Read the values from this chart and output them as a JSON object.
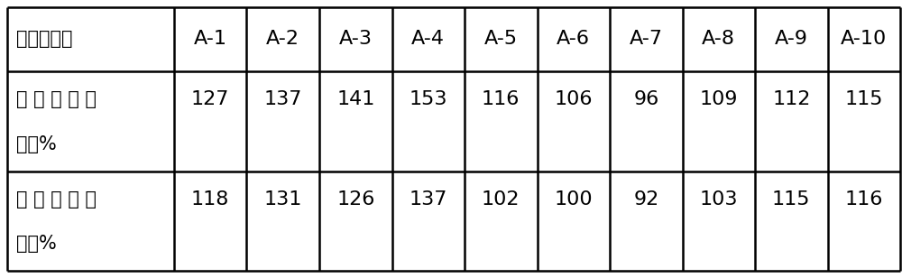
{
  "col_header": [
    "催化剂编号",
    "A-1",
    "A-2",
    "A-3",
    "A-4",
    "A-5",
    "A-6",
    "A-7",
    "A-8",
    "A-9",
    "A-10"
  ],
  "row1_label_line1": "相 对 脱 氮 活",
  "row1_label_line2": "性，%",
  "row2_label_line1": "相 对 脱 硫 活",
  "row2_label_line2": "性，%",
  "row1_values": [
    "127",
    "137",
    "141",
    "153",
    "116",
    "106",
    "96",
    "109",
    "112",
    "115"
  ],
  "row2_values": [
    "118",
    "131",
    "126",
    "137",
    "102",
    "100",
    "92",
    "103",
    "115",
    "116"
  ],
  "bg_color": "#ffffff",
  "border_color": "#000000",
  "text_color": "#000000",
  "font_size_chinese": 15,
  "font_size_data": 16,
  "font_size_header_label": 15
}
